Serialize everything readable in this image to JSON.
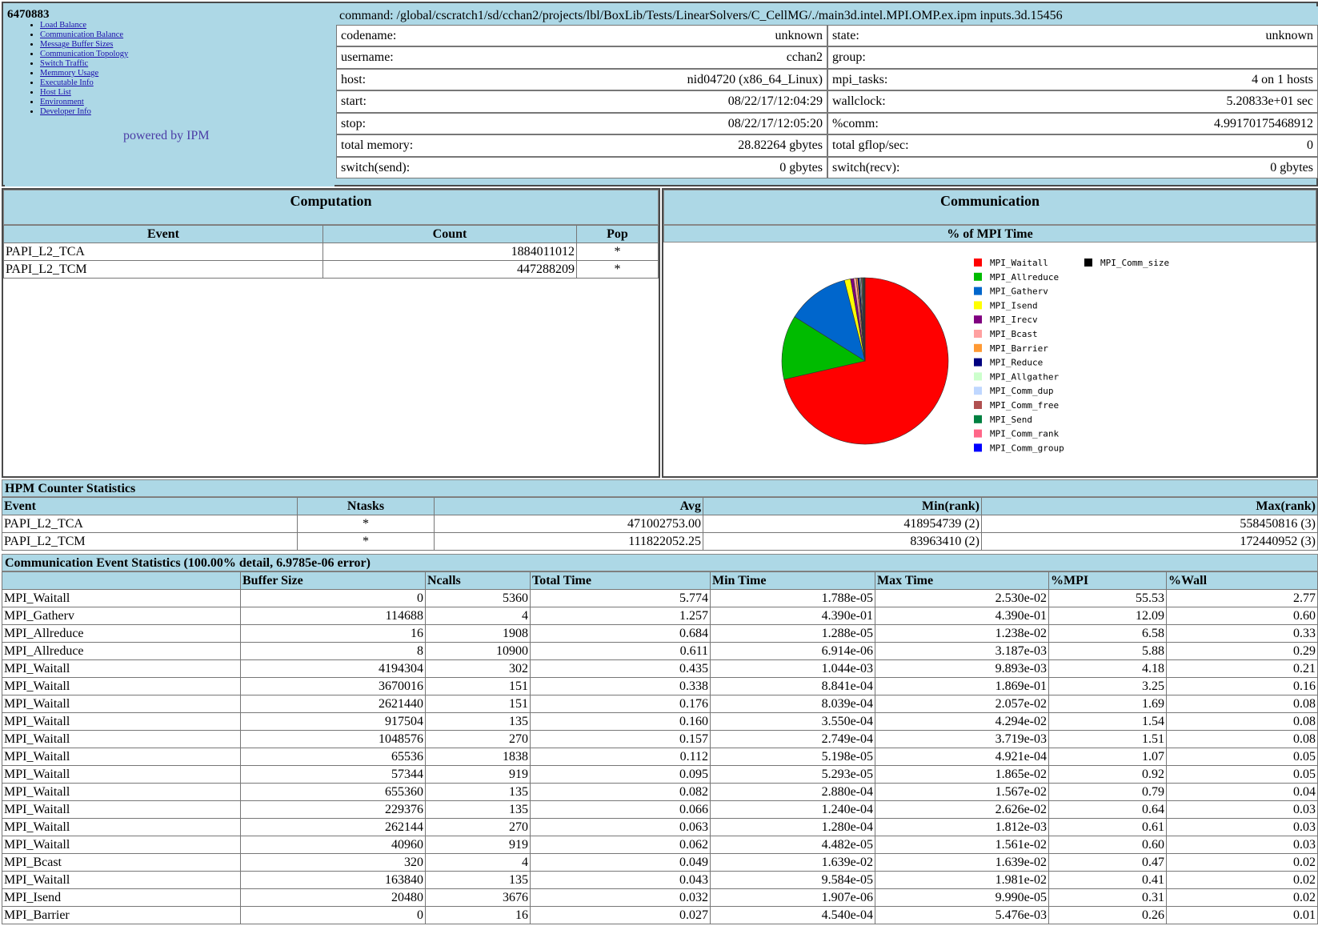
{
  "job_id": "6470883",
  "nav": [
    "Load Balance",
    "Communication Balance",
    "Message Buffer Sizes",
    "Communication Topology",
    "Switch Traffic",
    "Memmory Usage",
    "Executable Info",
    "Host List",
    "Environment",
    "Developer Info"
  ],
  "powered_by": "powered by IPM",
  "command": "command: /global/cscratch1/sd/cchan2/projects/lbl/BoxLib/Tests/LinearSolvers/C_CellMG/./main3d.intel.MPI.OMP.ex.ipm inputs.3d.15456",
  "info": {
    "codename_k": "codename:",
    "codename_v": "unknown",
    "state_k": "state:",
    "state_v": "unknown",
    "username_k": "username:",
    "username_v": "cchan2",
    "group_k": "group:",
    "group_v": "",
    "host_k": "host:",
    "host_v": "nid04720 (x86_64_Linux)",
    "mpi_tasks_k": "mpi_tasks:",
    "mpi_tasks_v": "4 on 1 hosts",
    "start_k": "start:",
    "start_v": "08/22/17/12:04:29",
    "wallclock_k": "wallclock:",
    "wallclock_v": "5.20833e+01 sec",
    "stop_k": "stop:",
    "stop_v": "08/22/17/12:05:20",
    "comm_k": "%comm:",
    "comm_v": "4.99170175468912",
    "total_memory_k": "total memory:",
    "total_memory_v": "28.82264 gbytes",
    "gflop_k": "total gflop/sec:",
    "gflop_v": "0",
    "switch_send_k": "switch(send):",
    "switch_send_v": "0 gbytes",
    "switch_recv_k": "switch(recv):",
    "switch_recv_v": "0 gbytes"
  },
  "computation": {
    "title": "Computation",
    "headers": [
      "Event",
      "Count",
      "Pop"
    ],
    "rows": [
      [
        "PAPI_L2_TCA",
        "1884011012",
        "*"
      ],
      [
        "PAPI_L2_TCM",
        "447288209",
        "*"
      ]
    ]
  },
  "communication": {
    "title": "Communication",
    "subtitle": "% of MPI Time"
  },
  "chart_data": {
    "type": "pie",
    "title": "% of MPI Time",
    "slices": [
      {
        "name": "MPI_Waitall",
        "value": 71.5,
        "color": "#ff0000"
      },
      {
        "name": "MPI_Allreduce",
        "value": 12.5,
        "color": "#00bb00"
      },
      {
        "name": "MPI_Gatherv",
        "value": 12.1,
        "color": "#0066cc"
      },
      {
        "name": "MPI_Isend",
        "value": 1.2,
        "color": "#ffff00"
      },
      {
        "name": "MPI_Irecv",
        "value": 0.6,
        "color": "#800080"
      },
      {
        "name": "MPI_Bcast",
        "value": 0.5,
        "color": "#ffa0a0"
      },
      {
        "name": "MPI_Barrier",
        "value": 0.3,
        "color": "#ff9933"
      },
      {
        "name": "MPI_Reduce",
        "value": 0.3,
        "color": "#000080"
      },
      {
        "name": "MPI_Allgather",
        "value": 0.2,
        "color": "#ccffcc"
      },
      {
        "name": "MPI_Comm_dup",
        "value": 0.2,
        "color": "#bfd7ff"
      },
      {
        "name": "MPI_Comm_free",
        "value": 0.2,
        "color": "#b05050"
      },
      {
        "name": "MPI_Send",
        "value": 0.2,
        "color": "#008040"
      },
      {
        "name": "MPI_Comm_rank",
        "value": 0.1,
        "color": "#ff6688"
      },
      {
        "name": "MPI_Comm_group",
        "value": 0.1,
        "color": "#0000ff"
      },
      {
        "name": "MPI_Comm_size",
        "value": 0.1,
        "color": "#000000"
      }
    ]
  },
  "hpm": {
    "title": "HPM Counter Statistics",
    "headers": [
      "Event",
      "Ntasks",
      "Avg",
      "Min(rank)",
      "Max(rank)"
    ],
    "rows": [
      [
        "PAPI_L2_TCA",
        "*",
        "471002753.00",
        "418954739 (2)",
        "558450816 (3)"
      ],
      [
        "PAPI_L2_TCM",
        "*",
        "111822052.25",
        "83963410 (2)",
        "172440952 (3)"
      ]
    ]
  },
  "comm_stats": {
    "title": "Communication Event Statistics (100.00% detail, 6.9785e-06 error)",
    "headers": [
      "",
      "Buffer Size",
      "Ncalls",
      "Total Time",
      "Min Time",
      "Max Time",
      "%MPI",
      "%Wall"
    ],
    "rows": [
      [
        "MPI_Waitall",
        "0",
        "5360",
        "5.774",
        "1.788e-05",
        "2.530e-02",
        "55.53",
        "2.77"
      ],
      [
        "MPI_Gatherv",
        "114688",
        "4",
        "1.257",
        "4.390e-01",
        "4.390e-01",
        "12.09",
        "0.60"
      ],
      [
        "MPI_Allreduce",
        "16",
        "1908",
        "0.684",
        "1.288e-05",
        "1.238e-02",
        "6.58",
        "0.33"
      ],
      [
        "MPI_Allreduce",
        "8",
        "10900",
        "0.611",
        "6.914e-06",
        "3.187e-03",
        "5.88",
        "0.29"
      ],
      [
        "MPI_Waitall",
        "4194304",
        "302",
        "0.435",
        "1.044e-03",
        "9.893e-03",
        "4.18",
        "0.21"
      ],
      [
        "MPI_Waitall",
        "3670016",
        "151",
        "0.338",
        "8.841e-04",
        "1.869e-01",
        "3.25",
        "0.16"
      ],
      [
        "MPI_Waitall",
        "2621440",
        "151",
        "0.176",
        "8.039e-04",
        "2.057e-02",
        "1.69",
        "0.08"
      ],
      [
        "MPI_Waitall",
        "917504",
        "135",
        "0.160",
        "3.550e-04",
        "4.294e-02",
        "1.54",
        "0.08"
      ],
      [
        "MPI_Waitall",
        "1048576",
        "270",
        "0.157",
        "2.749e-04",
        "3.719e-03",
        "1.51",
        "0.08"
      ],
      [
        "MPI_Waitall",
        "65536",
        "1838",
        "0.112",
        "5.198e-05",
        "4.921e-04",
        "1.07",
        "0.05"
      ],
      [
        "MPI_Waitall",
        "57344",
        "919",
        "0.095",
        "5.293e-05",
        "1.865e-02",
        "0.92",
        "0.05"
      ],
      [
        "MPI_Waitall",
        "655360",
        "135",
        "0.082",
        "2.880e-04",
        "1.567e-02",
        "0.79",
        "0.04"
      ],
      [
        "MPI_Waitall",
        "229376",
        "135",
        "0.066",
        "1.240e-04",
        "2.626e-02",
        "0.64",
        "0.03"
      ],
      [
        "MPI_Waitall",
        "262144",
        "270",
        "0.063",
        "1.280e-04",
        "1.812e-03",
        "0.61",
        "0.03"
      ],
      [
        "MPI_Waitall",
        "40960",
        "919",
        "0.062",
        "4.482e-05",
        "1.561e-02",
        "0.60",
        "0.03"
      ],
      [
        "MPI_Bcast",
        "320",
        "4",
        "0.049",
        "1.639e-02",
        "1.639e-02",
        "0.47",
        "0.02"
      ],
      [
        "MPI_Waitall",
        "163840",
        "135",
        "0.043",
        "9.584e-05",
        "1.981e-02",
        "0.41",
        "0.02"
      ],
      [
        "MPI_Isend",
        "20480",
        "3676",
        "0.032",
        "1.907e-06",
        "9.990e-05",
        "0.31",
        "0.02"
      ],
      [
        "MPI_Barrier",
        "0",
        "16",
        "0.027",
        "4.540e-04",
        "5.476e-03",
        "0.26",
        "0.01"
      ]
    ]
  }
}
